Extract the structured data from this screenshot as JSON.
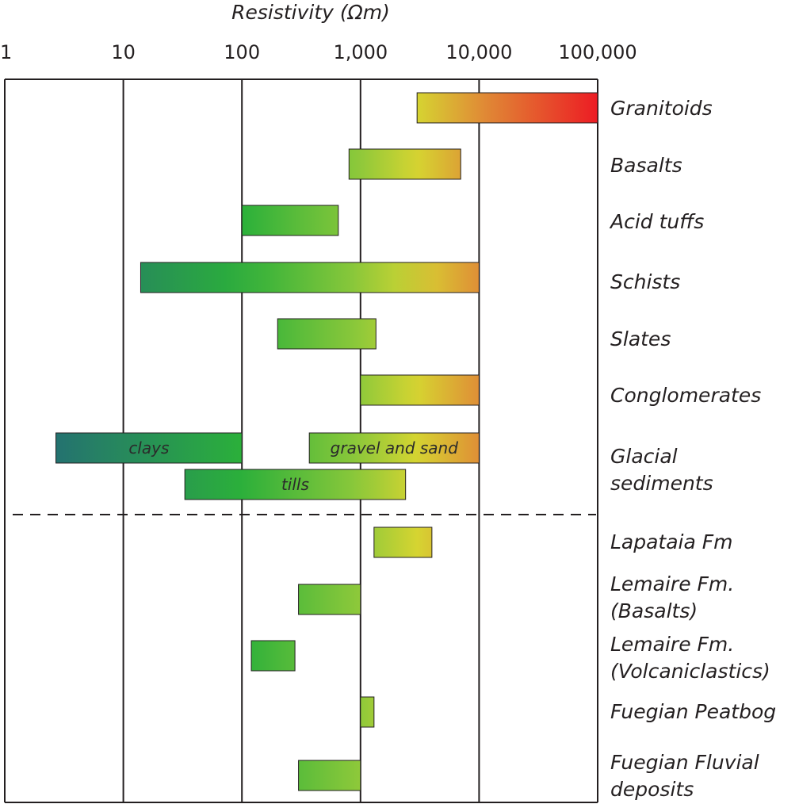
{
  "chart_data": {
    "type": "bar",
    "orientation": "horizontal",
    "x_scale": "log",
    "title": "",
    "xlabel": "Resistivity (Ωm)",
    "ylabel": "",
    "xlim": [
      1,
      100000
    ],
    "grid": true,
    "x_ticks": [
      {
        "value": 1,
        "label": "1"
      },
      {
        "value": 10,
        "label": "10"
      },
      {
        "value": 100,
        "label": "100"
      },
      {
        "value": 1000,
        "label": "1,000"
      },
      {
        "value": 10000,
        "label": "10,000"
      },
      {
        "value": 100000,
        "label": "100,000"
      }
    ],
    "categories": [
      {
        "label": "Granitoids",
        "bars": [
          {
            "min": 3000,
            "max": 100000
          }
        ]
      },
      {
        "label": "Basalts",
        "bars": [
          {
            "min": 800,
            "max": 7000
          }
        ]
      },
      {
        "label": "Acid tuffs",
        "bars": [
          {
            "min": 100,
            "max": 650
          }
        ]
      },
      {
        "label": "Schists",
        "bars": [
          {
            "min": 14,
            "max": 10000
          }
        ]
      },
      {
        "label": "Slates",
        "bars": [
          {
            "min": 200,
            "max": 1350
          }
        ]
      },
      {
        "label": "Conglomerates",
        "bars": [
          {
            "min": 1000,
            "max": 10000
          }
        ]
      },
      {
        "label": "Glacial sediments",
        "label_lines": [
          "Glacial",
          "sediments"
        ],
        "bars": [
          {
            "min": 2.7,
            "max": 100,
            "text": "clays"
          },
          {
            "min": 370,
            "max": 10000,
            "text": "gravel and sand"
          },
          {
            "min": 33,
            "max": 2400,
            "text": "tills",
            "sub": true
          }
        ]
      },
      {
        "label": "Lapataia Fm",
        "bars": [
          {
            "min": 1300,
            "max": 4000
          }
        ]
      },
      {
        "label": "Lemaire Fm. (Basalts)",
        "label_lines": [
          "Lemaire Fm.",
          "(Basalts)"
        ],
        "bars": [
          {
            "min": 300,
            "max": 1000
          }
        ]
      },
      {
        "label": "Lemaire Fm. (Volcaniclastics)",
        "label_lines": [
          "Lemaire Fm.",
          "(Volcaniclastics)"
        ],
        "bars": [
          {
            "min": 120,
            "max": 280
          }
        ]
      },
      {
        "label": "Fuegian Peatbog",
        "bars": [
          {
            "min": 1000,
            "max": 1300
          }
        ]
      },
      {
        "label": "Fuegian Fluvial deposits",
        "label_lines": [
          "Fuegian Fluvial",
          "deposits"
        ],
        "bars": [
          {
            "min": 300,
            "max": 1000
          }
        ]
      }
    ],
    "divider_after": "Glacial sediments",
    "color_scale": [
      {
        "value": 1,
        "color": "#22617f"
      },
      {
        "value": 100,
        "color": "#2bb03a"
      },
      {
        "value": 1000,
        "color": "#8fc93a"
      },
      {
        "value": 3000,
        "color": "#d6d431"
      },
      {
        "value": 10000,
        "color": "#df8f36"
      },
      {
        "value": 100000,
        "color": "#ec1c24"
      }
    ]
  }
}
